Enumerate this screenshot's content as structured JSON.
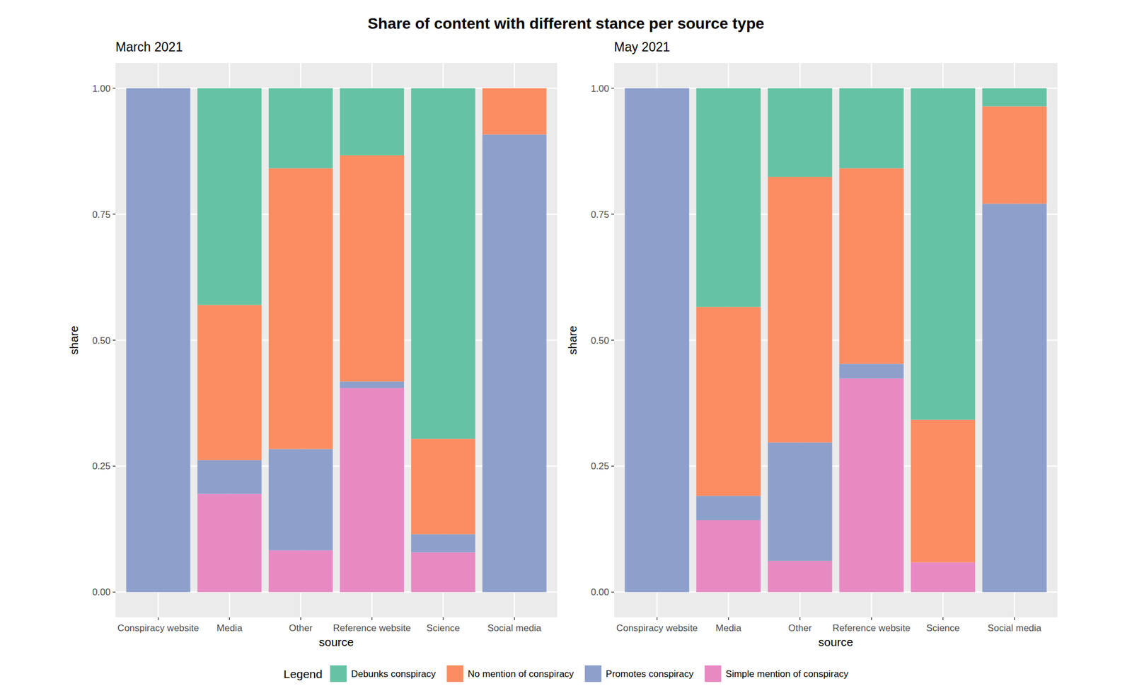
{
  "title": "Share of content with different stance per source type",
  "legend_title": "Legend",
  "chart_data": [
    {
      "type": "bar",
      "stacked": true,
      "grid": true,
      "legend": "bottom",
      "title": "March 2021",
      "x_label": "source",
      "y_label": "share",
      "categories": [
        "Conspiracy website",
        "Media",
        "Other",
        "Reference website",
        "Science",
        "Social media"
      ],
      "ylim": [
        -0.05,
        1.05
      ],
      "yticks": [
        {
          "value": 0,
          "label": "0.00"
        },
        0.25,
        {
          "value": 0.5,
          "label": "0.50"
        },
        0.75,
        {
          "value": 1,
          "label": "1.00"
        }
      ],
      "series": [
        {
          "name": "Debunks conspiracy",
          "color": "#66c2a5",
          "values": [
            0,
            0.43,
            0.159,
            0.133,
            0.696,
            0
          ]
        },
        {
          "name": "No mention of conspiracy",
          "color": "#fc8d62",
          "values": [
            0,
            0.308,
            0.557,
            0.449,
            0.189,
            0.092
          ]
        },
        {
          "name": "Promotes conspiracy",
          "color": "#8da0cb",
          "values": [
            1,
            0.067,
            0.201,
            0.013,
            0.036,
            0.908
          ]
        },
        {
          "name": "Simple mention of conspiracy",
          "color": "#e78ac3",
          "values": [
            0,
            0.195,
            0.083,
            0.405,
            0.079,
            0
          ]
        }
      ]
    },
    {
      "type": "bar",
      "stacked": true,
      "grid": true,
      "legend": "bottom",
      "title": "May 2021",
      "x_label": "source",
      "y_label": "share",
      "categories": [
        "Conspiracy website",
        "Media",
        "Other",
        "Reference website",
        "Science",
        "Social media"
      ],
      "ylim": [
        -0.05,
        1.05
      ],
      "yticks": [
        {
          "value": 0,
          "label": "0.00"
        },
        0.25,
        {
          "value": 0.5,
          "label": "0.50"
        },
        0.75,
        {
          "value": 1,
          "label": "1.00"
        }
      ],
      "series": [
        {
          "name": "Debunks conspiracy",
          "color": "#66c2a5",
          "values": [
            0,
            0.434,
            0.176,
            0.159,
            0.658,
            0.036
          ]
        },
        {
          "name": "No mention of conspiracy",
          "color": "#fc8d62",
          "values": [
            0,
            0.375,
            0.527,
            0.388,
            0.283,
            0.193
          ]
        },
        {
          "name": "Promotes conspiracy",
          "color": "#8da0cb",
          "values": [
            1,
            0.048,
            0.235,
            0.029,
            0,
            0.771
          ]
        },
        {
          "name": "Simple mention of conspiracy",
          "color": "#e78ac3",
          "values": [
            0,
            0.143,
            0.062,
            0.424,
            0.059,
            0
          ]
        }
      ]
    }
  ]
}
